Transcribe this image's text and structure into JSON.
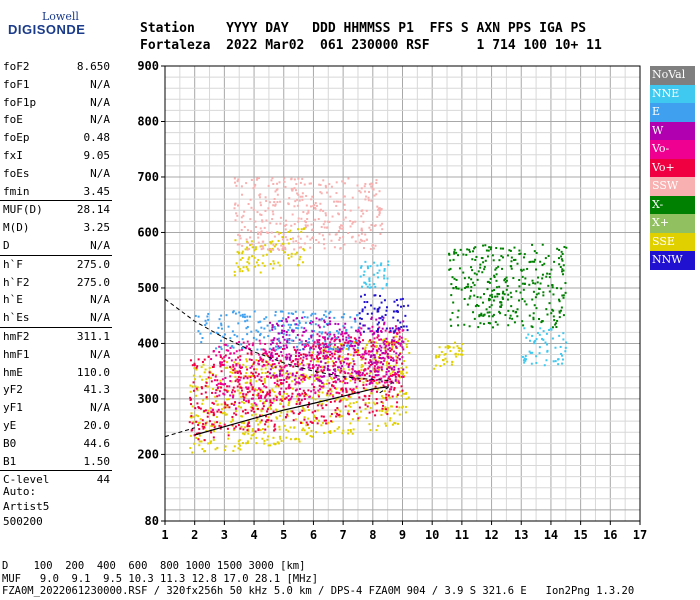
{
  "logo": {
    "line1": "Lowell",
    "line2": "DIGISONDE"
  },
  "header": {
    "line1": "Station    YYYY DAY   DDD HHMMSS P1  FFS S AXN PPS IGA PS",
    "line2": "Fortaleza  2022 Mar02  061 230000 RSF      1 714 100 10+ 11"
  },
  "params": [
    {
      "k": "foF2",
      "v": "8.650"
    },
    {
      "k": "foF1",
      "v": "N/A"
    },
    {
      "k": "foF1p",
      "v": "N/A"
    },
    {
      "k": "foE",
      "v": "N/A"
    },
    {
      "k": "foEp",
      "v": "0.48"
    },
    {
      "k": "fxI",
      "v": "9.05"
    },
    {
      "k": "foEs",
      "v": "N/A"
    },
    {
      "k": "fmin",
      "v": "3.45"
    },
    {
      "k": "MUF(D)",
      "v": "28.14",
      "sep": true
    },
    {
      "k": "M(D)",
      "v": "3.25"
    },
    {
      "k": "D",
      "v": "N/A"
    },
    {
      "k": "h`F",
      "v": "275.0",
      "sep": true
    },
    {
      "k": "h`F2",
      "v": "275.0"
    },
    {
      "k": "h`E",
      "v": "N/A"
    },
    {
      "k": "h`Es",
      "v": "N/A"
    },
    {
      "k": "hmF2",
      "v": "311.1",
      "sep": true
    },
    {
      "k": "hmF1",
      "v": "N/A"
    },
    {
      "k": "hmE",
      "v": "110.0"
    },
    {
      "k": "yF2",
      "v": "41.3"
    },
    {
      "k": "yF1",
      "v": "N/A"
    },
    {
      "k": "yE",
      "v": "20.0"
    },
    {
      "k": "B0",
      "v": "44.6"
    },
    {
      "k": "B1",
      "v": "1.50"
    },
    {
      "k": "C-level",
      "v": "44",
      "sep": true
    }
  ],
  "auto_text": "Auto:\nArtist5\n500200",
  "footer": {
    "line1": "D    100  200  400  600  800 1000 1500 3000 [km]",
    "line2": "MUF   9.0  9.1  9.5 10.3 11.3 12.8 17.0 28.1 [MHz]",
    "line3": "FZA0M_2022061230000.RSF / 320fx256h 50 kHz 5.0 km / DPS-4 FZA0M 904 / 3.9 S 321.6 E   Ion2Png 1.3.20"
  },
  "legend": [
    {
      "label": "NoVal",
      "color": "#7f7f7f"
    },
    {
      "label": "NNE",
      "color": "#3fc8f0"
    },
    {
      "label": "E",
      "color": "#40a0f0"
    },
    {
      "label": "W",
      "color": "#b000b0"
    },
    {
      "label": "Vo-",
      "color": "#f00090"
    },
    {
      "label": "Vo+",
      "color": "#f00040"
    },
    {
      "label": "SSW",
      "color": "#f8b0b0"
    },
    {
      "label": "X-",
      "color": "#008000"
    },
    {
      "label": "X+",
      "color": "#90c060"
    },
    {
      "label": "SSE",
      "color": "#e0d000"
    },
    {
      "label": "NNW",
      "color": "#2010d0"
    }
  ],
  "chart_data": {
    "type": "scatter",
    "xlim": [
      1,
      17
    ],
    "ylim": [
      80,
      900
    ],
    "x_ticks": [
      "1",
      "2",
      "3",
      "4",
      "5",
      "6",
      "7",
      "8",
      "9",
      "10",
      "11",
      "12",
      "13",
      "14",
      "15",
      "16",
      "17"
    ],
    "y_ticks": [
      "80",
      "200",
      "300",
      "400",
      "500",
      "600",
      "700",
      "800",
      "900"
    ],
    "grid": true,
    "clusters": [
      {
        "name": "SSE",
        "color": "#e0d000",
        "x": [
          1.8,
          9.2
        ],
        "y": [
          225,
          390
        ]
      },
      {
        "name": "Vo+",
        "color": "#f00040",
        "x": [
          1.8,
          9.0
        ],
        "y": [
          250,
          400
        ]
      },
      {
        "name": "Vo-",
        "color": "#f00090",
        "x": [
          2.5,
          9.0
        ],
        "y": [
          300,
          420
        ]
      },
      {
        "name": "E",
        "color": "#40a0f0",
        "x": [
          2.0,
          7.5
        ],
        "y": [
          390,
          460
        ]
      },
      {
        "name": "W",
        "color": "#b000b0",
        "x": [
          4.5,
          9.0
        ],
        "y": [
          330,
          450
        ]
      },
      {
        "name": "NNW",
        "color": "#2010d0",
        "x": [
          7.5,
          9.2
        ],
        "y": [
          420,
          490
        ]
      },
      {
        "name": "NNE",
        "color": "#3fc8f0",
        "x": [
          7.5,
          8.5
        ],
        "y": [
          500,
          550
        ]
      },
      {
        "name": "X-",
        "color": "#008000",
        "x": [
          10.5,
          14.5
        ],
        "y": [
          430,
          580
        ]
      },
      {
        "name": "SSE",
        "color": "#e0d000",
        "x": [
          3.3,
          5.7
        ],
        "y": [
          530,
          600
        ]
      },
      {
        "name": "SSW",
        "color": "#f8b0b0",
        "x": [
          3.3,
          8.3
        ],
        "y": [
          570,
          700
        ]
      },
      {
        "name": "SSE",
        "color": "#e0d000",
        "x": [
          10.0,
          11.0
        ],
        "y": [
          360,
          400
        ]
      },
      {
        "name": "NNE",
        "color": "#3fc8f0",
        "x": [
          13.0,
          14.5
        ],
        "y": [
          360,
          430
        ]
      }
    ],
    "trace_solid": [
      [
        2.0,
        235
      ],
      [
        3,
        250
      ],
      [
        4,
        265
      ],
      [
        5,
        280
      ],
      [
        6,
        292
      ],
      [
        7,
        305
      ],
      [
        8,
        318
      ],
      [
        8.5,
        322
      ]
    ],
    "trace_dashed": [
      [
        1.0,
        232
      ],
      [
        1.5,
        240
      ],
      [
        2.0,
        248
      ]
    ],
    "trace_profile": [
      [
        1.0,
        480
      ],
      [
        2,
        440
      ],
      [
        3,
        410
      ],
      [
        4,
        385
      ],
      [
        5,
        365
      ],
      [
        6,
        350
      ],
      [
        7,
        340
      ],
      [
        8,
        335
      ],
      [
        8.6,
        333
      ],
      [
        8.65,
        330
      ],
      [
        8.5,
        320
      ],
      [
        8.2,
        310
      ]
    ]
  }
}
